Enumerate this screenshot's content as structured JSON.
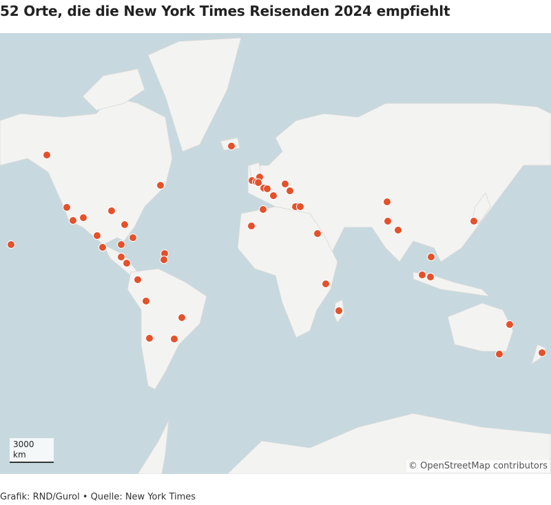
{
  "header": {
    "title": "52 Orte, die die New York Times Reisenden 2024 empfiehlt"
  },
  "map": {
    "attribution": "© OpenStreetMap contributors",
    "scale_bar": {
      "distance": "3000",
      "unit": "km"
    }
  },
  "footer": {
    "credit": "Grafik: RND/Gurol • Quelle: New York Times"
  }
}
